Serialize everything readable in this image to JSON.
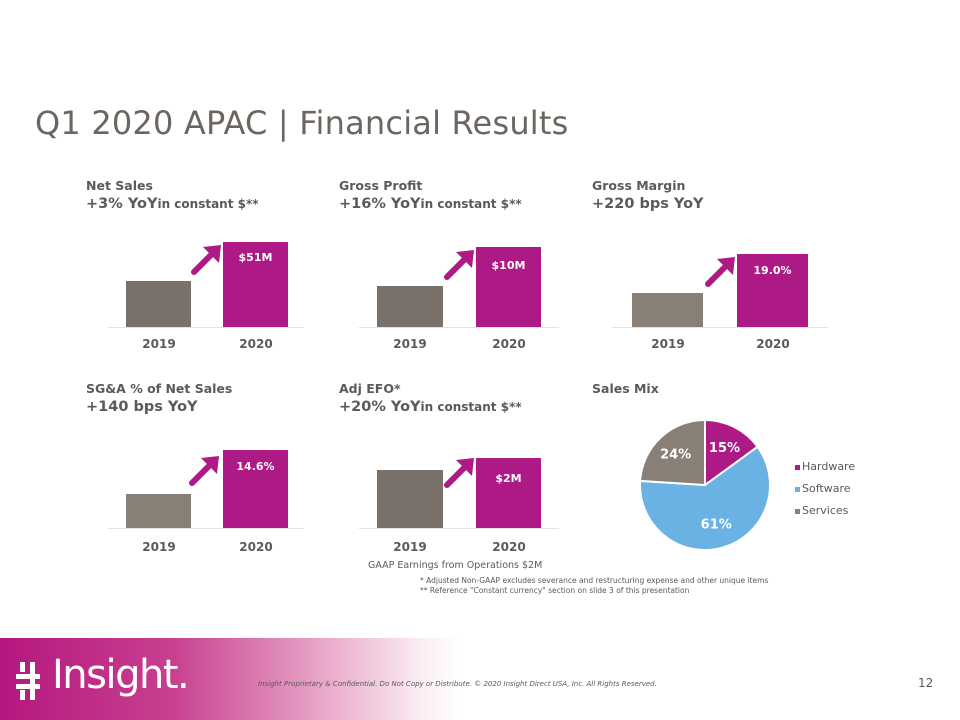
{
  "page_title": "Q1 2020 APAC | Financial Results",
  "panels": {
    "net_sales": {
      "title": "Net Sales",
      "delta": "+3% YoY",
      "qualifier": "in constant $**",
      "years": [
        "2019",
        "2020"
      ],
      "value_label": "$51M"
    },
    "gross_profit": {
      "title": "Gross Profit",
      "delta": "+16% YoY",
      "qualifier": "in constant $**",
      "years": [
        "2019",
        "2020"
      ],
      "value_label": "$10M"
    },
    "gross_margin": {
      "title": "Gross Margin",
      "delta": "+220 bps YoY",
      "years": [
        "2019",
        "2020"
      ],
      "value_label": "19.0%"
    },
    "sga": {
      "title": "SG&A % of Net Sales",
      "delta": "+140 bps YoY",
      "years": [
        "2019",
        "2020"
      ],
      "value_label": "14.6%"
    },
    "adj_efo": {
      "title": "Adj EFO*",
      "delta": "+20% YoY",
      "qualifier": "in constant $**",
      "years": [
        "2019",
        "2020"
      ],
      "value_label": "$2M"
    },
    "sales_mix": {
      "title": "Sales Mix"
    }
  },
  "chart_data": [
    {
      "type": "bar",
      "categories": [
        "2019",
        "2020"
      ],
      "values": [
        49.5,
        51
      ],
      "data_labels": [
        "",
        "$51M"
      ],
      "title": "Net Sales"
    },
    {
      "type": "bar",
      "categories": [
        "2019",
        "2020"
      ],
      "values": [
        8.6,
        10
      ],
      "data_labels": [
        "",
        "$10M"
      ],
      "title": "Gross Profit"
    },
    {
      "type": "bar",
      "categories": [
        "2019",
        "2020"
      ],
      "values": [
        16.8,
        19.0
      ],
      "data_labels": [
        "",
        "19.0%"
      ],
      "title": "Gross Margin"
    },
    {
      "type": "bar",
      "categories": [
        "2019",
        "2020"
      ],
      "values": [
        13.2,
        14.6
      ],
      "data_labels": [
        "",
        "14.6%"
      ],
      "title": "SG&A % of Net Sales"
    },
    {
      "type": "bar",
      "categories": [
        "2019",
        "2020"
      ],
      "values": [
        1.7,
        2.0
      ],
      "data_labels": [
        "",
        "$2M"
      ],
      "title": "Adj EFO*"
    },
    {
      "type": "pie",
      "title": "Sales Mix",
      "categories": [
        "Hardware",
        "Software",
        "Services"
      ],
      "values": [
        15,
        61,
        24
      ],
      "data_labels": [
        "15%",
        "61%",
        "24%"
      ],
      "colors": [
        "#ae1a85",
        "#6ab2e3",
        "#887f77"
      ],
      "legend": "right"
    }
  ],
  "colors": {
    "accent": "#ae1a85",
    "prior_year": "#7b716b",
    "software": "#6ab2e3"
  },
  "gaap_note": "GAAP Earnings from Operations $2M",
  "footnotes": [
    "*   Adjusted Non-GAAP excludes severance and restructuring  expense and other unique items",
    "** Reference \"Constant currency\" section  on slide 3 of this presentation"
  ],
  "footer": {
    "logo_text": "Insight.",
    "confidential": "Insight Proprietary & Confidential. Do Not Copy or Distribute.  © 2020 Insight Direct USA, Inc. All Rights Reserved.",
    "page_number": "12"
  }
}
